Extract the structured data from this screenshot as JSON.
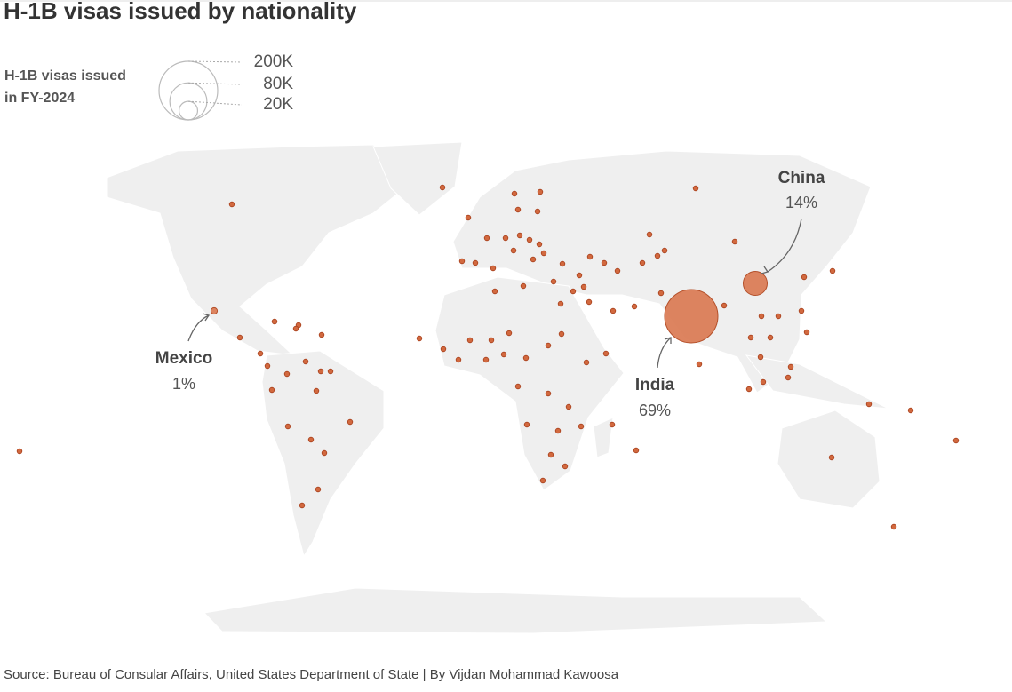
{
  "title": "H-1B visas issued by nationality",
  "legend": {
    "label_lines": [
      "H-1B visas issued",
      "in FY-2024"
    ],
    "sizes": [
      {
        "value": 200000,
        "label": "200K"
      },
      {
        "value": 80000,
        "label": "80K"
      },
      {
        "value": 20000,
        "label": "20K"
      }
    ]
  },
  "callouts": [
    {
      "name": "China",
      "share": 14,
      "share_label": "14%"
    },
    {
      "name": "India",
      "share": 69,
      "share_label": "69%"
    },
    {
      "name": "Mexico",
      "share": 1,
      "share_label": "1%"
    }
  ],
  "source": "Source: Bureau of Consular Affairs, United States Department of State | By Vijdan Mohammad Kawoosa"
}
